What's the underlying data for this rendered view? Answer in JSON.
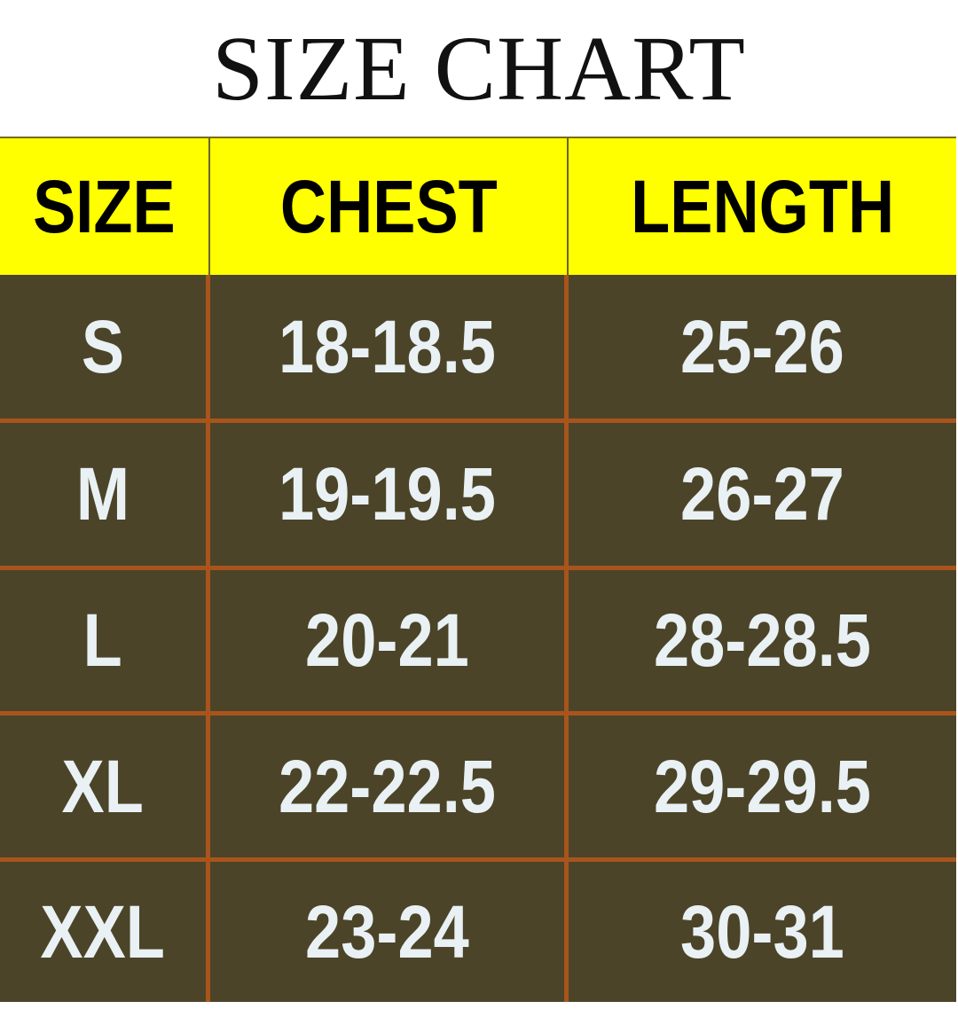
{
  "title": "SIZE CHART",
  "colors": {
    "header_bg": "#ffff00",
    "body_bg": "#4b4428",
    "grid_line": "#a9541c",
    "body_text": "#e9f1f4"
  },
  "chart_data": {
    "type": "table",
    "title": "SIZE CHART",
    "columns": [
      "SIZE",
      "CHEST",
      "LENGTH"
    ],
    "rows": [
      [
        "S",
        "18-18.5",
        "25-26"
      ],
      [
        "M",
        "19-19.5",
        "26-27"
      ],
      [
        "L",
        "20-21",
        "28-28.5"
      ],
      [
        "XL",
        "22-22.5",
        "29-29.5"
      ],
      [
        "XXL",
        "23-24",
        "30-31"
      ]
    ]
  }
}
